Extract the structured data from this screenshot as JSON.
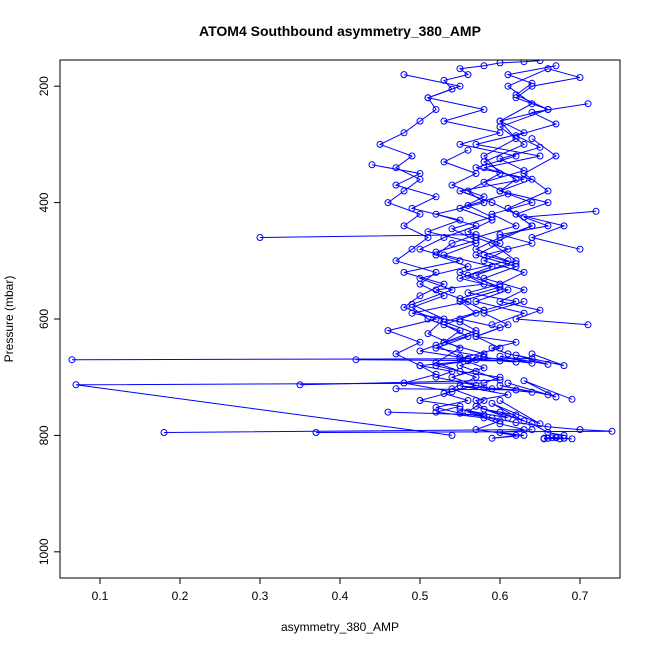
{
  "chart_data": {
    "type": "line",
    "title": "ATOM4 Southbound asymmetry_380_AMP",
    "xlabel": "asymmetry_380_AMP",
    "ylabel": "Pressure (mbar)",
    "xlim": [
      0.05,
      0.75
    ],
    "ylim": [
      1045,
      155
    ],
    "y_inverted": true,
    "x_ticks": [
      "0.1",
      "0.2",
      "0.3",
      "0.4",
      "0.5",
      "0.6",
      "0.7"
    ],
    "y_ticks": [
      "200",
      "400",
      "600",
      "800",
      "1000"
    ],
    "grid": false,
    "legend": "none",
    "marker": "open-circle",
    "series_color": "#0000ff",
    "series": [
      {
        "x": [
          0.68,
          0.66,
          0.64,
          0.6,
          0.62,
          0.58,
          0.57,
          0.61,
          0.55,
          0.59,
          0.52,
          0.54,
          0.5,
          0.56,
          0.58,
          0.53,
          0.57,
          0.55,
          0.49,
          0.56,
          0.52,
          0.58,
          0.55,
          0.61,
          0.57,
          0.6,
          0.64,
          0.62,
          0.59,
          0.55,
          0.63,
          0.58,
          0.65,
          0.57,
          0.63,
          0.6,
          0.66,
          0.62,
          0.64,
          0.7,
          0.66
        ],
        "y": [
          800,
          795,
          780,
          760,
          765,
          755,
          740,
          730,
          715,
          720,
          700,
          690,
          680,
          672,
          660,
          640,
          620,
          605,
          590,
          570,
          550,
          540,
          520,
          500,
          480,
          460,
          440,
          420,
          400,
          380,
          360,
          340,
          320,
          300,
          280,
          260,
          240,
          220,
          200,
          185,
          170
        ]
      },
      {
        "x": [
          0.54,
          0.07,
          0.58,
          0.6,
          0.55,
          0.52,
          0.57,
          0.5,
          0.53,
          0.55,
          0.51,
          0.49,
          0.53,
          0.5,
          0.52,
          0.47,
          0.49,
          0.51,
          0.48,
          0.5,
          0.46,
          0.48,
          0.5,
          0.47,
          0.49,
          0.45,
          0.48,
          0.5,
          0.52,
          0.51,
          0.54,
          0.53,
          0.56,
          0.55,
          0.58,
          0.6,
          0.63,
          0.65
        ],
        "y": [
          800,
          713,
          710,
          700,
          690,
          680,
          670,
          655,
          640,
          620,
          600,
          580,
          560,
          540,
          520,
          500,
          480,
          460,
          440,
          420,
          400,
          380,
          360,
          340,
          320,
          300,
          280,
          260,
          240,
          220,
          205,
          190,
          180,
          170,
          165,
          160,
          158,
          156
        ]
      },
      {
        "x": [
          0.18,
          0.63,
          0.6,
          0.58,
          0.52,
          0.55,
          0.5,
          0.54,
          0.48,
          0.52,
          0.5,
          0.47,
          0.5,
          0.46,
          0.52,
          0.48,
          0.5,
          0.53,
          0.48,
          0.55,
          0.5,
          0.53,
          0.57,
          0.52,
          0.58,
          0.56,
          0.6,
          0.58,
          0.62,
          0.6,
          0.64,
          0.61,
          0.66
        ],
        "y": [
          795,
          790,
          780,
          770,
          760,
          750,
          740,
          725,
          710,
          695,
          680,
          660,
          640,
          620,
          600,
          580,
          560,
          540,
          520,
          500,
          480,
          460,
          440,
          420,
          400,
          380,
          350,
          320,
          290,
          260,
          230,
          200,
          170
        ]
      },
      {
        "x": [
          0.065,
          0.64,
          0.61,
          0.59,
          0.62,
          0.57,
          0.6,
          0.55,
          0.58,
          0.62,
          0.56,
          0.6,
          0.63,
          0.58,
          0.61,
          0.57,
          0.62,
          0.59,
          0.64,
          0.6,
          0.62,
          0.58,
          0.63,
          0.6,
          0.66,
          0.62,
          0.64,
          0.61,
          0.67
        ],
        "y": [
          670,
          668,
          660,
          650,
          640,
          630,
          615,
          600,
          585,
          570,
          555,
          540,
          520,
          500,
          480,
          460,
          440,
          420,
          400,
          380,
          360,
          330,
          300,
          270,
          240,
          215,
          195,
          180,
          165
        ]
      },
      {
        "x": [
          0.3,
          0.57,
          0.54,
          0.52,
          0.56,
          0.5,
          0.54,
          0.49,
          0.53,
          0.51,
          0.55,
          0.52,
          0.57,
          0.54,
          0.58,
          0.56,
          0.6,
          0.57,
          0.62,
          0.59,
          0.63,
          0.6,
          0.64
        ],
        "y": [
          460,
          455,
          470,
          490,
          510,
          530,
          550,
          575,
          600,
          625,
          650,
          675,
          700,
          720,
          740,
          760,
          775,
          790,
          800,
          805,
          800,
          795,
          790
        ]
      },
      {
        "x": [
          0.35,
          0.6,
          0.57,
          0.55,
          0.58,
          0.52,
          0.56,
          0.53,
          0.57,
          0.55,
          0.6,
          0.57,
          0.62,
          0.59,
          0.64,
          0.61,
          0.66,
          0.63,
          0.67,
          0.64
        ],
        "y": [
          713,
          705,
          690,
          680,
          665,
          650,
          630,
          610,
          590,
          570,
          550,
          525,
          500,
          470,
          440,
          410,
          380,
          350,
          320,
          290
        ]
      },
      {
        "x": [
          0.37,
          0.74,
          0.7,
          0.66,
          0.62,
          0.59,
          0.55,
          0.52,
          0.56,
          0.53,
          0.57,
          0.54,
          0.58,
          0.55,
          0.6,
          0.57,
          0.61,
          0.58,
          0.63
        ],
        "y": [
          795,
          793,
          790,
          785,
          778,
          770,
          762,
          752,
          740,
          728,
          714,
          700,
          684,
          668,
          650,
          630,
          610,
          590,
          570
        ]
      },
      {
        "x": [
          0.71,
          0.62,
          0.65,
          0.6,
          0.63,
          0.58,
          0.62,
          0.57,
          0.6,
          0.56,
          0.59,
          0.55,
          0.58,
          0.54,
          0.57,
          0.53,
          0.56
        ],
        "y": [
          610,
          600,
          585,
          570,
          550,
          530,
          510,
          490,
          470,
          450,
          430,
          410,
          390,
          370,
          350,
          330,
          310
        ]
      },
      {
        "x": [
          0.72,
          0.63,
          0.66,
          0.6,
          0.64,
          0.58,
          0.62,
          0.56,
          0.6,
          0.55,
          0.58,
          0.53,
          0.57,
          0.52,
          0.55
        ],
        "y": [
          415,
          425,
          440,
          455,
          470,
          490,
          505,
          525,
          545,
          565,
          585,
          605,
          625,
          645,
          665
        ]
      },
      {
        "x": [
          0.44,
          0.5,
          0.47,
          0.52,
          0.49,
          0.55,
          0.51,
          0.57,
          0.53,
          0.59,
          0.55,
          0.61,
          0.57,
          0.63,
          0.59
        ],
        "y": [
          335,
          350,
          370,
          390,
          410,
          430,
          450,
          470,
          490,
          510,
          530,
          550,
          570,
          590,
          610
        ]
      },
      {
        "x": [
          0.48,
          0.55,
          0.51,
          0.58,
          0.53,
          0.6,
          0.55,
          0.62,
          0.57,
          0.64,
          0.6,
          0.66,
          0.62,
          0.68,
          0.64,
          0.7
        ],
        "y": [
          180,
          200,
          220,
          240,
          260,
          280,
          300,
          320,
          340,
          360,
          380,
          400,
          420,
          440,
          460,
          480
        ]
      },
      {
        "x": [
          0.71,
          0.64,
          0.67,
          0.62,
          0.65,
          0.6,
          0.63,
          0.58,
          0.61,
          0.56,
          0.59,
          0.54,
          0.57,
          0.52
        ],
        "y": [
          230,
          245,
          265,
          285,
          305,
          325,
          345,
          365,
          385,
          405,
          425,
          445,
          465,
          485
        ]
      },
      {
        "x": [
          0.66,
          0.68,
          0.67,
          0.69,
          0.655,
          0.67,
          0.66,
          0.675,
          0.665,
          0.68,
          0.655,
          0.67
        ],
        "y": [
          805,
          805,
          804,
          806,
          805,
          803,
          805,
          806,
          804,
          805,
          806,
          804
        ]
      },
      {
        "x": [
          0.42,
          0.6,
          0.56,
          0.62,
          0.58,
          0.64,
          0.6,
          0.66,
          0.62,
          0.68,
          0.64
        ],
        "y": [
          670,
          672,
          668,
          674,
          666,
          676,
          664,
          678,
          662,
          680,
          660
        ]
      },
      {
        "x": [
          0.47,
          0.62,
          0.58,
          0.64,
          0.6,
          0.66,
          0.61,
          0.67,
          0.63,
          0.69
        ],
        "y": [
          720,
          722,
          718,
          726,
          714,
          730,
          710,
          734,
          706,
          738
        ]
      },
      {
        "x": [
          0.46,
          0.58,
          0.55,
          0.61,
          0.57,
          0.63,
          0.59,
          0.65,
          0.6
        ],
        "y": [
          760,
          765,
          755,
          770,
          750,
          775,
          745,
          780,
          740
        ]
      }
    ]
  }
}
